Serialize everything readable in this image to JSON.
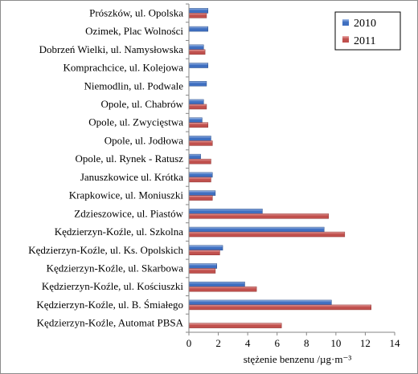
{
  "chart_data": {
    "type": "bar",
    "orientation": "horizontal",
    "categories": [
      "Prószków, ul. Opolska",
      "Ozimek, Plac Wolności",
      "Dobrzeń Wielki, ul. Namysłowska",
      "Komprachcice, ul. Kolejowa",
      "Niemodlin, ul. Podwale",
      "Opole, ul. Chabrów",
      "Opole, ul. Zwycięstwa",
      "Opole, ul. Jodłowa",
      "Opole, ul. Rynek - Ratusz",
      "Januszkowice ul. Krótka",
      "Krapkowice, ul. Moniuszki",
      "Zdzieszowice, ul. Piastów",
      "Kędzierzyn-Koźle, ul. Szkolna",
      "Kędzierzyn-Koźle, ul. Ks. Opolskich",
      "Kędzierzyn-Koźle, ul. Skarbowa",
      "Kędzierzyn-Koźle, ul. Kościuszki",
      "Kędzierzyn-Koźle, ul. B. Śmiałego",
      "Kędzierzyn-Koźle, Automat PBSA"
    ],
    "series": [
      {
        "name": "2010",
        "color": "#3f6fc0",
        "values": [
          1.3,
          1.3,
          1.0,
          1.3,
          1.2,
          1.0,
          0.9,
          1.5,
          0.8,
          1.6,
          1.8,
          5.0,
          9.2,
          2.3,
          1.9,
          3.8,
          9.7,
          null
        ]
      },
      {
        "name": "2011",
        "color": "#c0504d",
        "values": [
          1.2,
          null,
          1.1,
          null,
          null,
          1.2,
          1.3,
          1.6,
          1.5,
          1.5,
          1.6,
          9.5,
          10.6,
          2.1,
          1.8,
          4.6,
          12.4,
          6.3
        ]
      }
    ],
    "xlabel": "stężenie benzenu /µg·m⁻³",
    "xlim": [
      0,
      14
    ],
    "xticks": [
      "0",
      "2",
      "4",
      "6",
      "8",
      "10",
      "12",
      "14"
    ],
    "grid": false,
    "legend_position": "top-right"
  }
}
